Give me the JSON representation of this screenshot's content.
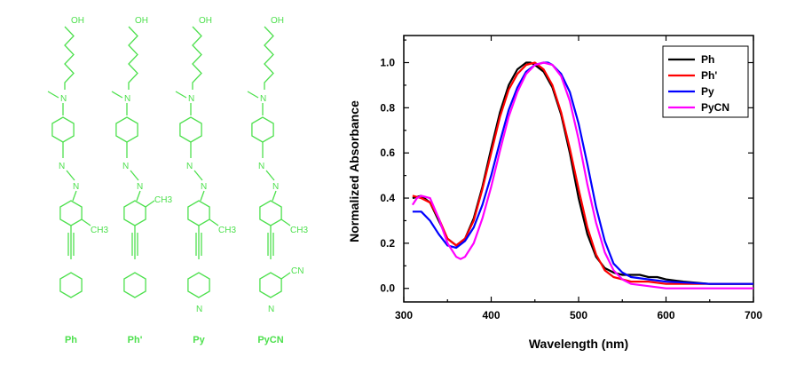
{
  "structures": {
    "compounds": [
      {
        "label": "Ph",
        "oh": "OH",
        "n": "N",
        "sub1": "",
        "sub2": "CH3",
        "terminal": "benzene",
        "terminal_sub": ""
      },
      {
        "label": "Ph'",
        "oh": "OH",
        "n": "N",
        "sub1": "CH3",
        "sub2": "",
        "terminal": "benzene",
        "terminal_sub": ""
      },
      {
        "label": "Py",
        "oh": "OH",
        "n": "N",
        "sub1": "",
        "sub2": "CH3",
        "terminal": "pyridine",
        "terminal_sub": "",
        "ring_n": "N"
      },
      {
        "label": "PyCN",
        "oh": "OH",
        "n": "N",
        "sub1": "",
        "sub2": "CH3",
        "terminal": "pyridine",
        "terminal_sub": "CN",
        "ring_n": "N"
      }
    ],
    "color": "#4de04d"
  },
  "chart_data": {
    "type": "line",
    "xlabel": "Wavelength  (nm)",
    "ylabel": "Normalized Absorbance",
    "xlim": [
      300,
      700
    ],
    "ylim": [
      -0.06,
      1.12
    ],
    "xticks": [
      300,
      400,
      500,
      600,
      700
    ],
    "yticks": [
      0.0,
      0.2,
      0.4,
      0.6,
      0.8,
      1.0
    ],
    "ytick_labels": [
      "0.0",
      "0.2",
      "0.4",
      "0.6",
      "0.8",
      "1.0"
    ],
    "legend_position": "top-right",
    "grid": false,
    "series": [
      {
        "name": "Ph",
        "color": "#000000",
        "x": [
          310,
          320,
          330,
          340,
          350,
          360,
          370,
          380,
          390,
          400,
          410,
          420,
          430,
          440,
          445,
          450,
          460,
          470,
          480,
          490,
          500,
          510,
          520,
          530,
          540,
          550,
          560,
          570,
          580,
          590,
          600,
          620,
          650,
          700
        ],
        "y": [
          0.4,
          0.41,
          0.38,
          0.3,
          0.22,
          0.19,
          0.22,
          0.31,
          0.45,
          0.62,
          0.78,
          0.9,
          0.97,
          1.0,
          1.0,
          0.99,
          0.96,
          0.89,
          0.77,
          0.6,
          0.4,
          0.24,
          0.14,
          0.09,
          0.07,
          0.06,
          0.06,
          0.06,
          0.05,
          0.05,
          0.04,
          0.03,
          0.02,
          0.02
        ]
      },
      {
        "name": "Ph'",
        "color": "#ff0000",
        "x": [
          310,
          320,
          330,
          340,
          350,
          360,
          370,
          380,
          390,
          400,
          410,
          420,
          430,
          440,
          450,
          460,
          470,
          480,
          490,
          500,
          510,
          520,
          530,
          540,
          550,
          560,
          580,
          600,
          650,
          700
        ],
        "y": [
          0.41,
          0.4,
          0.38,
          0.31,
          0.22,
          0.19,
          0.22,
          0.3,
          0.44,
          0.6,
          0.76,
          0.88,
          0.95,
          0.99,
          1.0,
          0.97,
          0.9,
          0.78,
          0.62,
          0.44,
          0.27,
          0.15,
          0.08,
          0.05,
          0.04,
          0.03,
          0.03,
          0.02,
          0.02,
          0.02
        ]
      },
      {
        "name": "Py",
        "color": "#0000ff",
        "x": [
          310,
          320,
          330,
          340,
          350,
          360,
          370,
          380,
          390,
          400,
          410,
          420,
          430,
          440,
          450,
          460,
          465,
          470,
          480,
          490,
          500,
          510,
          520,
          530,
          540,
          550,
          560,
          580,
          600,
          650,
          700
        ],
        "y": [
          0.34,
          0.34,
          0.3,
          0.24,
          0.19,
          0.18,
          0.21,
          0.27,
          0.37,
          0.5,
          0.65,
          0.79,
          0.89,
          0.96,
          0.99,
          1.0,
          1.0,
          0.99,
          0.95,
          0.87,
          0.73,
          0.55,
          0.36,
          0.21,
          0.11,
          0.07,
          0.05,
          0.04,
          0.03,
          0.02,
          0.02
        ]
      },
      {
        "name": "PyCN",
        "color": "#ff00ff",
        "x": [
          310,
          315,
          320,
          330,
          340,
          350,
          360,
          365,
          370,
          380,
          390,
          400,
          410,
          420,
          430,
          440,
          450,
          460,
          470,
          480,
          490,
          500,
          510,
          520,
          530,
          540,
          550,
          560,
          580,
          600,
          650,
          700
        ],
        "y": [
          0.37,
          0.4,
          0.41,
          0.4,
          0.31,
          0.2,
          0.14,
          0.13,
          0.14,
          0.2,
          0.31,
          0.45,
          0.61,
          0.76,
          0.87,
          0.95,
          0.99,
          1.0,
          0.99,
          0.94,
          0.83,
          0.66,
          0.46,
          0.29,
          0.16,
          0.08,
          0.04,
          0.02,
          0.01,
          0.0,
          0.0,
          0.0
        ]
      }
    ]
  }
}
